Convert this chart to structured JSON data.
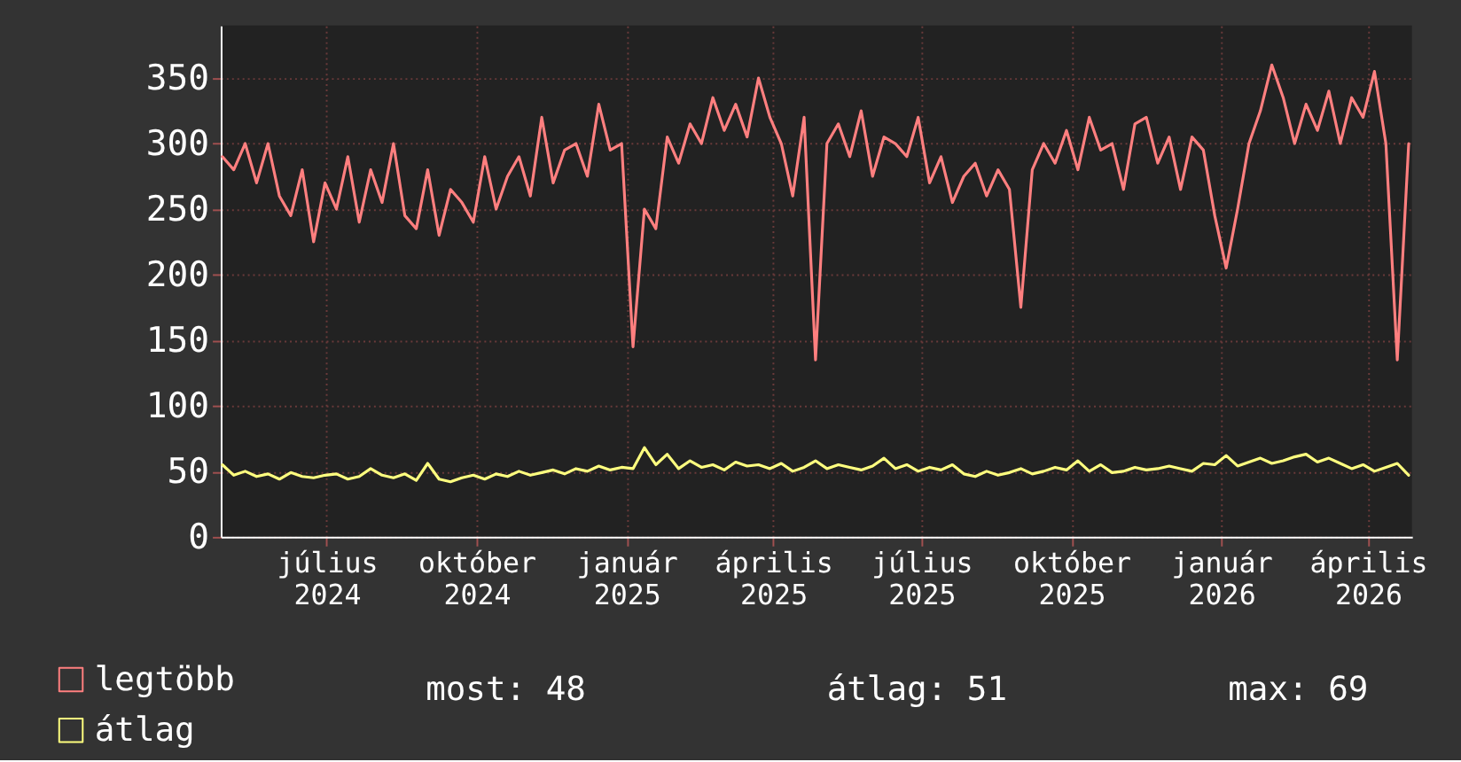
{
  "chart_data": {
    "type": "line",
    "x": [
      "2024-04-28",
      "2024-05-05",
      "2024-05-12",
      "2024-05-19",
      "2024-05-26",
      "2024-06-02",
      "2024-06-09",
      "2024-06-16",
      "2024-06-23",
      "2024-06-30",
      "2024-07-07",
      "2024-07-14",
      "2024-07-21",
      "2024-07-28",
      "2024-08-04",
      "2024-08-11",
      "2024-08-18",
      "2024-08-25",
      "2024-09-01",
      "2024-09-08",
      "2024-09-15",
      "2024-09-22",
      "2024-09-29",
      "2024-10-06",
      "2024-10-13",
      "2024-10-20",
      "2024-10-27",
      "2024-11-03",
      "2024-11-10",
      "2024-11-17",
      "2024-11-24",
      "2024-12-01",
      "2024-12-08",
      "2024-12-15",
      "2024-12-22",
      "2024-12-29",
      "2025-01-05",
      "2025-01-12",
      "2025-01-19",
      "2025-01-26",
      "2025-02-02",
      "2025-02-09",
      "2025-02-16",
      "2025-02-23",
      "2025-03-02",
      "2025-03-09",
      "2025-03-16",
      "2025-03-23",
      "2025-03-30",
      "2025-04-06",
      "2025-04-13",
      "2025-04-20",
      "2025-04-27",
      "2025-05-04",
      "2025-05-11",
      "2025-05-18",
      "2025-05-25",
      "2025-06-01",
      "2025-06-08",
      "2025-06-15",
      "2025-06-22",
      "2025-06-29",
      "2025-07-06",
      "2025-07-13",
      "2025-07-20",
      "2025-07-27",
      "2025-08-03",
      "2025-08-10",
      "2025-08-17",
      "2025-08-24",
      "2025-08-31",
      "2025-09-07",
      "2025-09-14",
      "2025-09-21",
      "2025-09-28",
      "2025-10-05",
      "2025-10-12",
      "2025-10-19",
      "2025-10-26",
      "2025-11-02",
      "2025-11-09",
      "2025-11-16",
      "2025-11-23",
      "2025-11-30",
      "2025-12-07",
      "2025-12-14",
      "2025-12-21",
      "2025-12-28",
      "2026-01-04",
      "2026-01-11",
      "2026-01-18",
      "2026-01-25",
      "2026-02-01",
      "2026-02-08",
      "2026-02-15",
      "2026-02-22",
      "2026-03-01",
      "2026-03-08",
      "2026-03-15",
      "2026-03-22",
      "2026-03-29",
      "2026-04-05",
      "2026-04-12",
      "2026-04-19",
      "2026-04-26"
    ],
    "series": [
      {
        "name": "legtöbb",
        "color": "#ff7f7f",
        "values": [
          290,
          280,
          300,
          270,
          300,
          260,
          245,
          280,
          225,
          270,
          250,
          290,
          240,
          280,
          255,
          300,
          245,
          235,
          280,
          230,
          265,
          255,
          240,
          290,
          250,
          275,
          290,
          260,
          320,
          270,
          295,
          300,
          275,
          330,
          295,
          300,
          145,
          250,
          235,
          305,
          285,
          315,
          300,
          335,
          310,
          330,
          305,
          350,
          320,
          300,
          260,
          320,
          135,
          300,
          315,
          290,
          325,
          275,
          305,
          300,
          290,
          320,
          270,
          290,
          255,
          275,
          285,
          260,
          280,
          265,
          175,
          280,
          300,
          285,
          310,
          280,
          320,
          295,
          300,
          265,
          315,
          320,
          285,
          305,
          265,
          305,
          295,
          245,
          205,
          250,
          300,
          325,
          360,
          335,
          300,
          330,
          310,
          340,
          300,
          335,
          320,
          355,
          300,
          135,
          300
        ]
      },
      {
        "name": "átlag",
        "color": "#ffff7f",
        "values": [
          55,
          47,
          50,
          46,
          48,
          44,
          49,
          46,
          45,
          47,
          48,
          44,
          46,
          52,
          47,
          45,
          48,
          43,
          56,
          44,
          42,
          45,
          47,
          44,
          48,
          46,
          50,
          47,
          49,
          51,
          48,
          52,
          50,
          54,
          51,
          53,
          52,
          68,
          55,
          63,
          52,
          58,
          53,
          55,
          51,
          57,
          54,
          55,
          52,
          56,
          50,
          53,
          58,
          52,
          55,
          53,
          51,
          54,
          60,
          52,
          55,
          50,
          53,
          51,
          55,
          48,
          46,
          50,
          47,
          49,
          52,
          48,
          50,
          53,
          51,
          58,
          50,
          55,
          49,
          50,
          53,
          51,
          52,
          54,
          52,
          50,
          56,
          55,
          62,
          54,
          57,
          60,
          56,
          58,
          61,
          63,
          57,
          60,
          56,
          52,
          55,
          50,
          53,
          56,
          47
        ]
      }
    ],
    "xlim": [
      "2024-04-27",
      "2026-04-28"
    ],
    "xticks": [
      {
        "value": "2024-07-01",
        "label": "július 2024"
      },
      {
        "value": "2024-10-01",
        "label": "október 2024"
      },
      {
        "value": "2025-01-01",
        "label": "január 2025"
      },
      {
        "value": "2025-04-01",
        "label": "április 2025"
      },
      {
        "value": "2025-07-01",
        "label": "július 2025"
      },
      {
        "value": "2025-10-01",
        "label": "október 2025"
      },
      {
        "value": "2026-01-01",
        "label": "január 2026"
      },
      {
        "value": "2026-04-01",
        "label": "április 2026"
      }
    ],
    "ylim": [
      0,
      390
    ],
    "yticks": [
      0,
      50,
      100,
      150,
      200,
      250,
      300,
      350
    ],
    "grid": true,
    "legend": "bottom",
    "marker": "none",
    "line_style": "solid",
    "annotations": [
      "most: 48",
      "átlag: 51",
      "max: 69"
    ]
  }
}
